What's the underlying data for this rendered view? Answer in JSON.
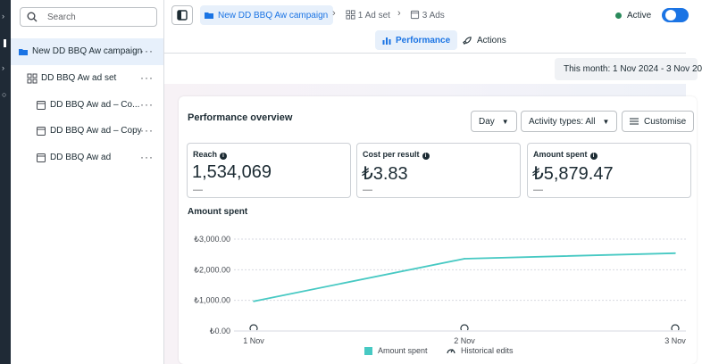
{
  "sidebar": {
    "search_placeholder": "Search",
    "items": [
      {
        "label": "New DD BBQ Aw campaign",
        "icon": "folder-icon",
        "selected": true
      },
      {
        "label": "DD BBQ Aw ad set",
        "icon": "grid-icon"
      },
      {
        "label": "DD BBQ Aw ad – Co...",
        "icon": "ad-icon"
      },
      {
        "label": "DD BBQ Aw ad – Copy",
        "icon": "ad-icon"
      },
      {
        "label": "DD BBQ Aw ad",
        "icon": "ad-icon"
      }
    ]
  },
  "breadcrumb": {
    "campaign": "New DD BBQ Aw campaign",
    "adset": "1 Ad set",
    "ads": "3 Ads"
  },
  "status": {
    "label": "Active",
    "on": true,
    "color": "#2a8a5b"
  },
  "tabs": [
    {
      "label": "Performance",
      "active": true
    },
    {
      "label": "Actions",
      "active": false
    }
  ],
  "date_range": "This month: 1 Nov 2024 - 3 Nov 20",
  "overview": {
    "title": "Performance overview",
    "controls": {
      "granularity": "Day",
      "activity": "Activity types: All",
      "customise": "Customise"
    }
  },
  "metrics": [
    {
      "label": "Reach",
      "value": "1,534,069",
      "delta": "—"
    },
    {
      "label": "Cost per result",
      "value": "₺3.83",
      "delta": "—"
    },
    {
      "label": "Amount spent",
      "value": "₺5,879.47",
      "delta": "—"
    }
  ],
  "chart_title": "Amount spent",
  "chart_data": {
    "type": "line",
    "title": "Amount spent",
    "x": [
      "1 Nov",
      "2 Nov",
      "3 Nov"
    ],
    "series": [
      {
        "name": "Amount spent",
        "values": [
          970,
          2360,
          2540
        ],
        "color": "#47c9c3"
      }
    ],
    "ylim": [
      0,
      3000
    ],
    "yticks": [
      "₺0.00",
      "₺1,000.00",
      "₺2,000.00",
      "₺3,000.00"
    ],
    "grid": true,
    "legend": [
      "Amount spent",
      "Historical edits"
    ],
    "legend_position": "bottom"
  },
  "colors": {
    "accent": "#1b74e4",
    "line": "#47c9c3"
  }
}
